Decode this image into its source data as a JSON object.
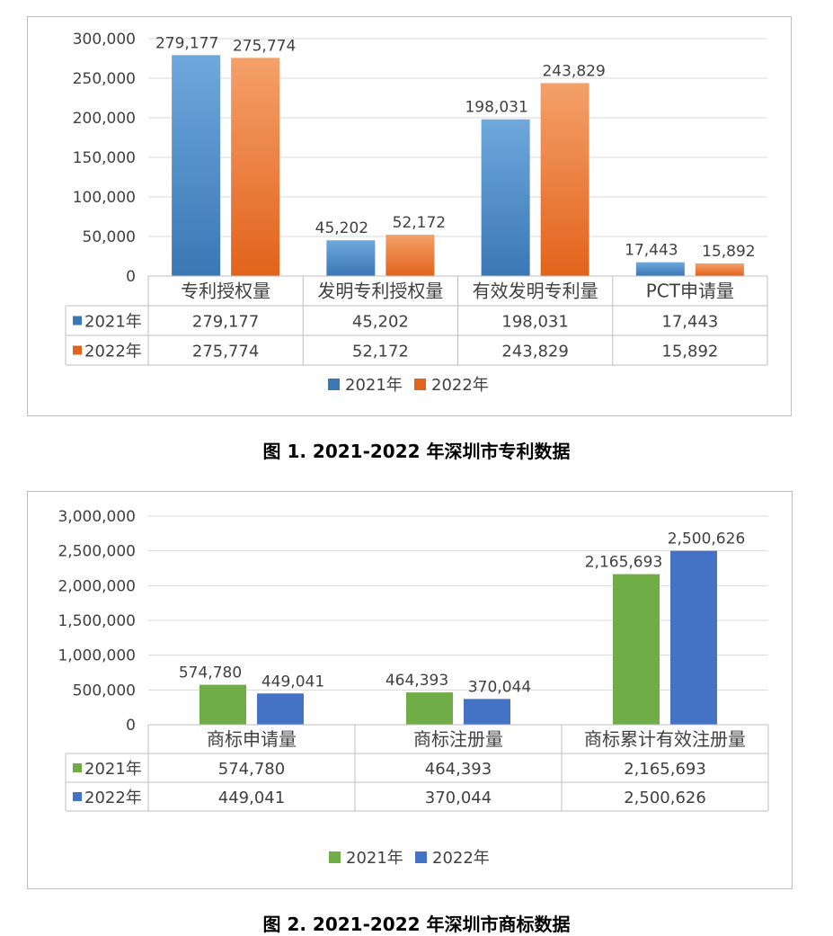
{
  "charts": [
    {
      "caption": "图 1.  2021-2022 年深圳市专利数据",
      "chart_data": {
        "type": "bar",
        "title": "",
        "categories": [
          "专利授权量",
          "发明专利授权量",
          "有效发明专利量",
          "PCT申请量"
        ],
        "series": [
          {
            "name": "2021年",
            "values": [
              279177,
              45202,
              198031,
              17443
            ],
            "labels": [
              "279,177",
              "45,202",
              "198,031",
              "17,443"
            ],
            "color_top": "#6fa8dc",
            "color_bottom": "#3a77b5"
          },
          {
            "name": "2022年",
            "values": [
              275774,
              52172,
              243829,
              15892
            ],
            "labels": [
              "275,774",
              "52,172",
              "243,829",
              "15,892"
            ],
            "color_top": "#f4a06a",
            "color_bottom": "#e2631b"
          }
        ],
        "ylim": [
          0,
          300000
        ],
        "yticks": [
          0,
          50000,
          100000,
          150000,
          200000,
          250000,
          300000
        ],
        "ytick_labels": [
          "0",
          "50,000",
          "100,000",
          "150,000",
          "200,000",
          "250,000",
          "300,000"
        ],
        "grid": true,
        "data_table": true,
        "legend_position": "bottom"
      }
    },
    {
      "caption": "图 2.  2021-2022 年深圳市商标数据",
      "chart_data": {
        "type": "bar",
        "title": "",
        "categories": [
          "商标申请量",
          "商标注册量",
          "商标累计有效注册量"
        ],
        "series": [
          {
            "name": "2021年",
            "values": [
              574780,
              464393,
              2165693
            ],
            "labels": [
              "574,780",
              "464,393",
              "2,165,693"
            ],
            "color_top": "#70ad47",
            "color_bottom": "#70ad47"
          },
          {
            "name": "2022年",
            "values": [
              449041,
              370044,
              2500626
            ],
            "labels": [
              "449,041",
              "370,044",
              "2,500,626"
            ],
            "color_top": "#4472c4",
            "color_bottom": "#4472c4"
          }
        ],
        "ylim": [
          0,
          3000000
        ],
        "yticks": [
          0,
          500000,
          1000000,
          1500000,
          2000000,
          2500000,
          3000000
        ],
        "ytick_labels": [
          "0",
          "500,000",
          "1,000,000",
          "1,500,000",
          "2,000,000",
          "2,500,000",
          "3,000,000"
        ],
        "grid": true,
        "data_table": true,
        "legend_position": "bottom"
      }
    }
  ]
}
